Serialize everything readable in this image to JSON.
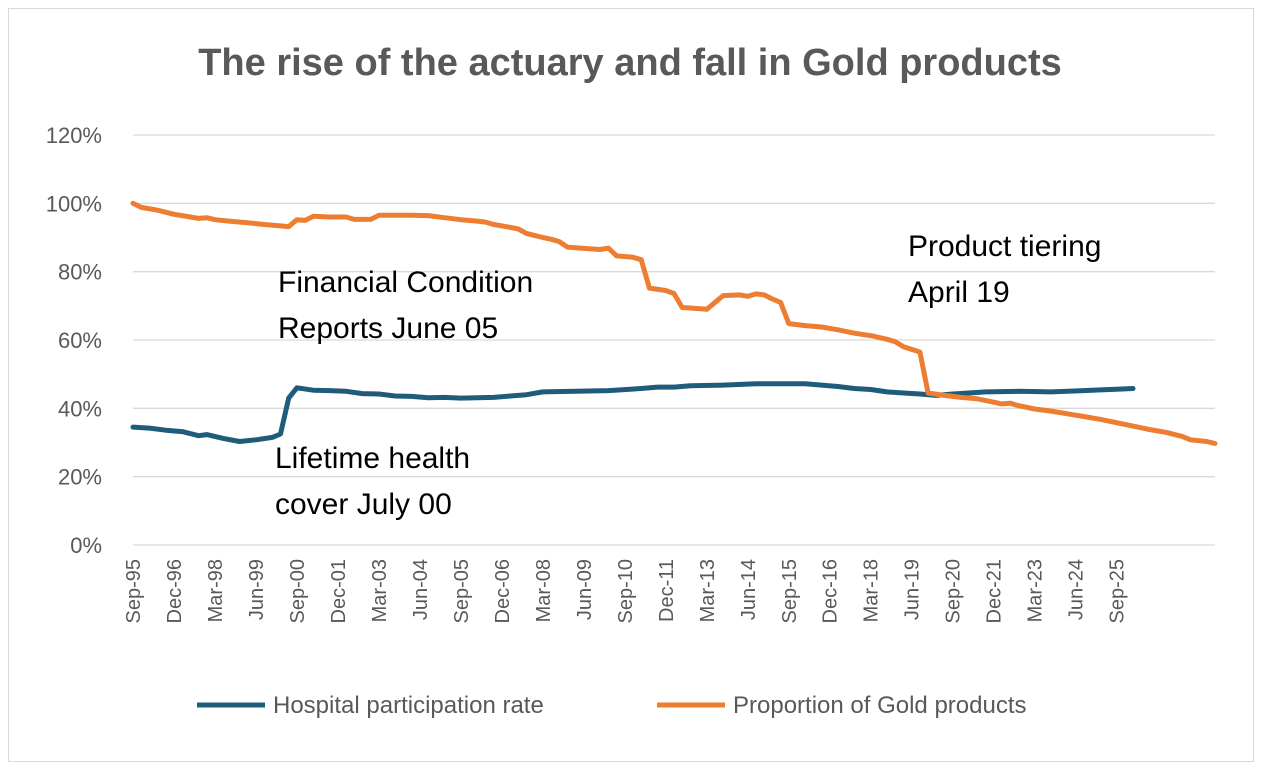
{
  "chart_data": {
    "type": "line",
    "title": "The rise of the actuary and fall in Gold products",
    "ylim": [
      0,
      120
    ],
    "y_ticks": [
      "0%",
      "20%",
      "40%",
      "60%",
      "80%",
      "100%",
      "120%"
    ],
    "y_tick_values": [
      0,
      20,
      40,
      60,
      80,
      100,
      120
    ],
    "x_tick_labels": [
      "Sep-95",
      "Dec-96",
      "Mar-98",
      "Jun-99",
      "Sep-00",
      "Dec-01",
      "Mar-03",
      "Jun-04",
      "Sep-05",
      "Dec-06",
      "Mar-08",
      "Jun-09",
      "Sep-10",
      "Dec-11",
      "Mar-13",
      "Jun-14",
      "Sep-15",
      "Dec-16",
      "Mar-18",
      "Jun-19",
      "Sep-20",
      "Dec-21",
      "Mar-23",
      "Jun-24",
      "Sep-25"
    ],
    "x_tick_index": [
      0,
      5,
      10,
      15,
      20,
      25,
      30,
      35,
      40,
      45,
      50,
      55,
      60,
      65,
      70,
      75,
      80,
      85,
      90,
      95,
      100,
      105,
      110,
      115,
      120
    ],
    "grid": true,
    "legend_position": "bottom",
    "series": [
      {
        "name": "Hospital participation rate",
        "color": "#1f5b7a",
        "points": [
          [
            0,
            34.5
          ],
          [
            2,
            34.2
          ],
          [
            4,
            33.6
          ],
          [
            6,
            33.2
          ],
          [
            8,
            32.0
          ],
          [
            9,
            32.3
          ],
          [
            11,
            31.2
          ],
          [
            13,
            30.3
          ],
          [
            15,
            30.8
          ],
          [
            17,
            31.5
          ],
          [
            18,
            32.5
          ],
          [
            19,
            43
          ],
          [
            20,
            46
          ],
          [
            22,
            45.3
          ],
          [
            24,
            45.2
          ],
          [
            26,
            45.0
          ],
          [
            28,
            44.3
          ],
          [
            30,
            44.2
          ],
          [
            32,
            43.6
          ],
          [
            34,
            43.5
          ],
          [
            36,
            43.1
          ],
          [
            38,
            43.2
          ],
          [
            40,
            43.0
          ],
          [
            44,
            43.2
          ],
          [
            46,
            43.6
          ],
          [
            48,
            44.0
          ],
          [
            50,
            44.8
          ],
          [
            54,
            45.0
          ],
          [
            58,
            45.2
          ],
          [
            62,
            45.8
          ],
          [
            64,
            46.2
          ],
          [
            66,
            46.2
          ],
          [
            68,
            46.6
          ],
          [
            72,
            46.8
          ],
          [
            76,
            47.2
          ],
          [
            82,
            47.2
          ],
          [
            84,
            46.8
          ],
          [
            86,
            46.4
          ],
          [
            88,
            45.8
          ],
          [
            90,
            45.5
          ],
          [
            92,
            44.8
          ],
          [
            94,
            44.5
          ],
          [
            96,
            44.2
          ],
          [
            98,
            43.8
          ],
          [
            100,
            44.2
          ],
          [
            102,
            44.5
          ],
          [
            104,
            44.8
          ],
          [
            108,
            45.0
          ],
          [
            112,
            44.8
          ],
          [
            114,
            45.0
          ],
          [
            116,
            45.2
          ],
          [
            118,
            45.4
          ],
          [
            120,
            45.6
          ],
          [
            122,
            45.8
          ]
        ]
      },
      {
        "name": "Proportion of Gold products",
        "color": "#ed7d31",
        "points": [
          [
            0,
            100
          ],
          [
            1,
            98.8
          ],
          [
            3,
            98.0
          ],
          [
            5,
            96.8
          ],
          [
            7,
            96.0
          ],
          [
            8,
            95.6
          ],
          [
            9,
            95.8
          ],
          [
            10,
            95.2
          ],
          [
            12,
            94.7
          ],
          [
            14,
            94.3
          ],
          [
            16,
            93.8
          ],
          [
            18,
            93.4
          ],
          [
            19,
            93.2
          ],
          [
            20,
            95.2
          ],
          [
            21,
            95.0
          ],
          [
            22,
            96.2
          ],
          [
            24,
            96.0
          ],
          [
            26,
            96.0
          ],
          [
            27,
            95.3
          ],
          [
            29,
            95.3
          ],
          [
            30,
            96.5
          ],
          [
            32,
            96.5
          ],
          [
            34,
            96.5
          ],
          [
            36,
            96.4
          ],
          [
            38,
            95.8
          ],
          [
            40,
            95.2
          ],
          [
            42,
            94.8
          ],
          [
            43,
            94.5
          ],
          [
            44,
            93.8
          ],
          [
            46,
            93.0
          ],
          [
            47,
            92.5
          ],
          [
            48,
            91.2
          ],
          [
            50,
            90.0
          ],
          [
            51,
            89.5
          ],
          [
            52,
            88.8
          ],
          [
            53,
            87.2
          ],
          [
            55,
            86.8
          ],
          [
            57,
            86.5
          ],
          [
            58,
            86.9
          ],
          [
            59,
            84.6
          ],
          [
            61,
            84.2
          ],
          [
            62,
            83.5
          ],
          [
            63,
            75.2
          ],
          [
            65,
            74.5
          ],
          [
            66,
            73.6
          ],
          [
            67,
            69.5
          ],
          [
            69,
            69.2
          ],
          [
            70,
            69.0
          ],
          [
            71,
            71.0
          ],
          [
            72,
            73.0
          ],
          [
            74,
            73.2
          ],
          [
            75,
            72.8
          ],
          [
            76,
            73.5
          ],
          [
            77,
            73.2
          ],
          [
            78,
            72.0
          ],
          [
            79,
            71.0
          ],
          [
            80,
            64.8
          ],
          [
            82,
            64.2
          ],
          [
            84,
            63.8
          ],
          [
            86,
            63.0
          ],
          [
            88,
            62.0
          ],
          [
            90,
            61.3
          ],
          [
            92,
            60.2
          ],
          [
            93,
            59.5
          ],
          [
            94,
            58.0
          ],
          [
            96,
            56.5
          ],
          [
            97,
            44.5
          ],
          [
            99,
            43.8
          ],
          [
            101,
            43.2
          ],
          [
            103,
            42.8
          ],
          [
            105,
            41.8
          ],
          [
            106,
            41.3
          ],
          [
            107,
            41.5
          ],
          [
            108,
            40.8
          ],
          [
            110,
            39.8
          ],
          [
            112,
            39.2
          ],
          [
            114,
            38.4
          ],
          [
            116,
            37.6
          ],
          [
            118,
            36.8
          ],
          [
            120,
            35.8
          ],
          [
            122,
            34.8
          ],
          [
            124,
            33.8
          ],
          [
            126,
            33.0
          ],
          [
            128,
            31.8
          ],
          [
            129,
            30.8
          ],
          [
            131,
            30.3
          ],
          [
            132,
            29.7
          ]
        ]
      }
    ],
    "x_max_index": 132,
    "annotations": [
      {
        "lines": [
          "Financial Condition",
          "Reports June 05"
        ]
      },
      {
        "lines": [
          "Lifetime health",
          "cover July 00"
        ]
      },
      {
        "lines": [
          "Product tiering",
          "April 19"
        ]
      }
    ]
  }
}
